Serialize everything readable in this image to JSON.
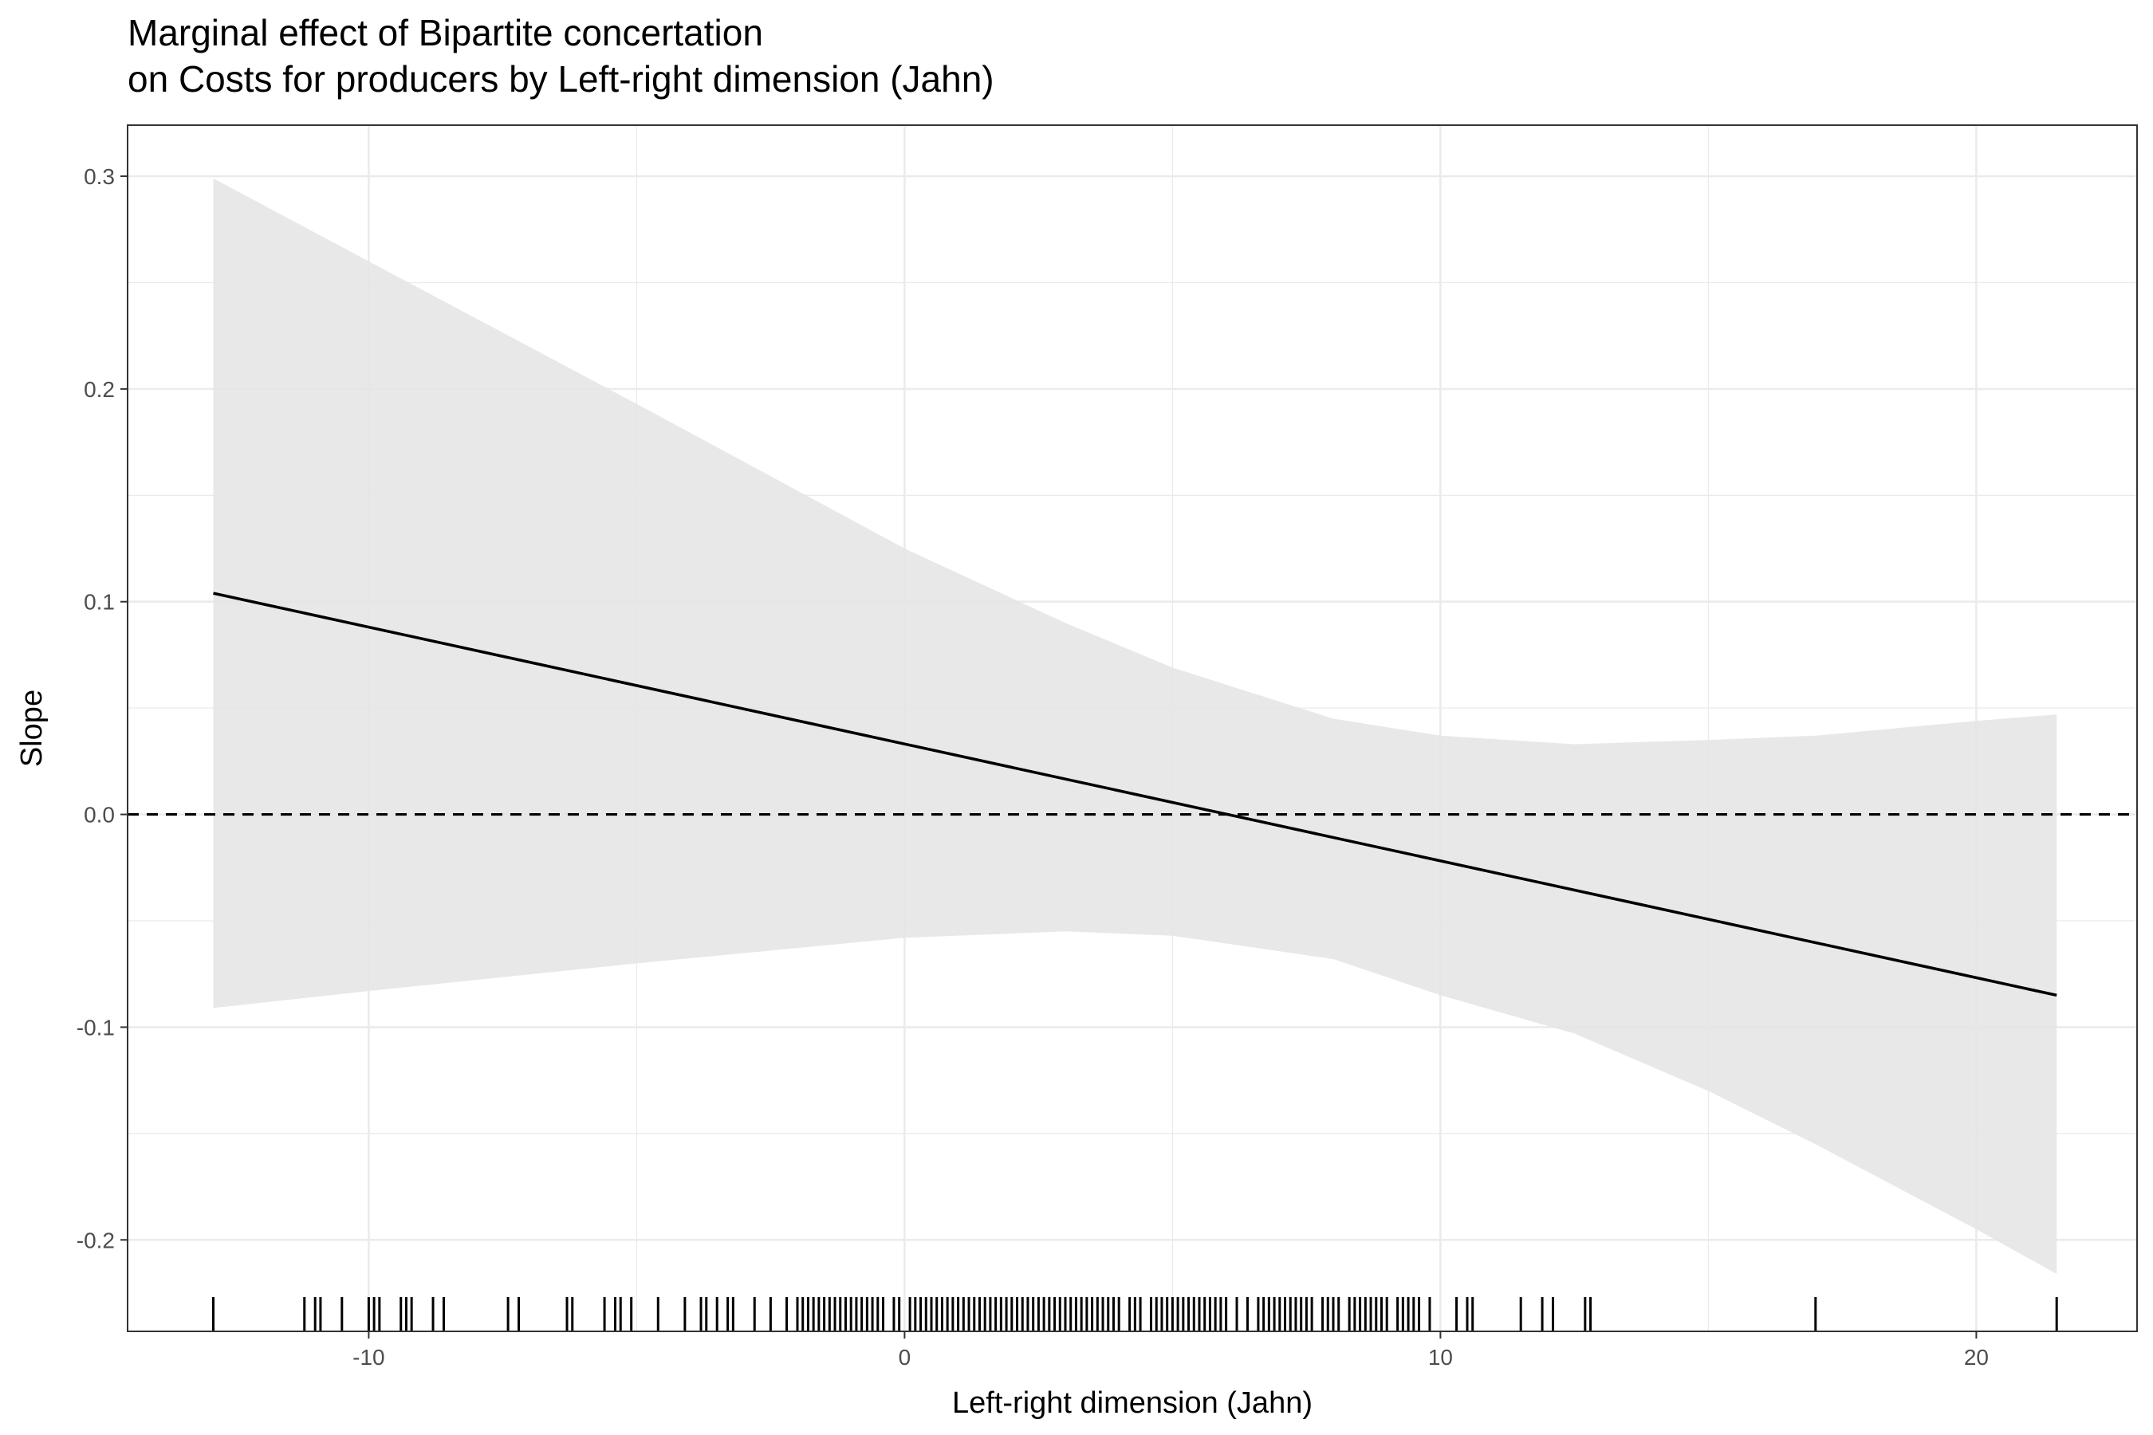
{
  "chart_data": {
    "type": "line",
    "title_lines": [
      "Marginal effect of Bipartite concertation",
      "on Costs for producers by Left-right dimension (Jahn)"
    ],
    "xlabel": "Left-right dimension (Jahn)",
    "ylabel": "Slope",
    "xlim": [
      -14.5,
      23
    ],
    "ylim": [
      -0.243,
      0.324
    ],
    "x_ticks": [
      -10,
      0,
      10,
      20
    ],
    "x_tick_labels": [
      "-10",
      "0",
      "10",
      "20"
    ],
    "y_ticks": [
      -0.2,
      -0.1,
      0.0,
      0.1,
      0.2,
      0.3
    ],
    "y_tick_labels": [
      "-0.2",
      "-0.1",
      "0.0",
      "0.1",
      "0.2",
      "0.3"
    ],
    "grid": true,
    "reference_line": {
      "y": 0,
      "style": "dashed"
    },
    "series": [
      {
        "type": "line",
        "x": [
          -12.9,
          21.5
        ],
        "y": [
          0.104,
          -0.085
        ]
      }
    ],
    "confidence_band": {
      "x": [
        -12.9,
        -10,
        -5,
        0,
        3,
        5,
        8,
        10,
        12.5,
        15,
        17,
        20,
        21.5
      ],
      "lower": [
        -0.091,
        -0.083,
        -0.07,
        -0.058,
        -0.055,
        -0.057,
        -0.068,
        -0.085,
        -0.103,
        -0.13,
        -0.155,
        -0.195,
        -0.216
      ],
      "upper": [
        0.299,
        0.26,
        0.193,
        0.125,
        0.09,
        0.069,
        0.045,
        0.037,
        0.033,
        0.035,
        0.037,
        0.044,
        0.047
      ]
    },
    "rug_x": [
      -12.9,
      -11.2,
      -11.0,
      -10.9,
      -10.5,
      -10.0,
      -9.9,
      -9.8,
      -9.4,
      -9.3,
      -9.2,
      -8.8,
      -8.6,
      -7.4,
      -7.2,
      -6.3,
      -6.2,
      -5.6,
      -5.4,
      -5.3,
      -5.1,
      -4.6,
      -4.1,
      -3.8,
      -3.7,
      -3.5,
      -3.3,
      -3.2,
      -2.8,
      -2.5,
      -2.2,
      -2.0,
      -1.9,
      -1.8,
      -1.7,
      -1.6,
      -1.5,
      -1.4,
      -1.3,
      -1.2,
      -1.1,
      -1.0,
      -0.9,
      -0.8,
      -0.7,
      -0.6,
      -0.5,
      -0.4,
      -0.2,
      -0.1,
      0.1,
      0.2,
      0.3,
      0.4,
      0.5,
      0.6,
      0.7,
      0.8,
      0.9,
      1.0,
      1.1,
      1.2,
      1.3,
      1.4,
      1.5,
      1.6,
      1.7,
      1.8,
      1.9,
      2.0,
      2.1,
      2.2,
      2.3,
      2.4,
      2.5,
      2.6,
      2.7,
      2.8,
      2.9,
      3.0,
      3.1,
      3.2,
      3.3,
      3.4,
      3.5,
      3.6,
      3.7,
      3.8,
      3.9,
      4.0,
      4.2,
      4.3,
      4.4,
      4.6,
      4.7,
      4.8,
      4.9,
      5.0,
      5.1,
      5.2,
      5.3,
      5.4,
      5.5,
      5.6,
      5.7,
      5.8,
      5.9,
      6.0,
      6.2,
      6.4,
      6.6,
      6.7,
      6.8,
      6.9,
      7.0,
      7.1,
      7.2,
      7.3,
      7.4,
      7.5,
      7.6,
      7.8,
      7.9,
      8.0,
      8.1,
      8.3,
      8.4,
      8.5,
      8.6,
      8.7,
      8.8,
      8.9,
      9.0,
      9.2,
      9.3,
      9.4,
      9.5,
      9.6,
      9.8,
      10.3,
      10.5,
      10.6,
      11.5,
      11.9,
      12.1,
      12.7,
      12.8,
      17.0,
      21.5
    ]
  }
}
